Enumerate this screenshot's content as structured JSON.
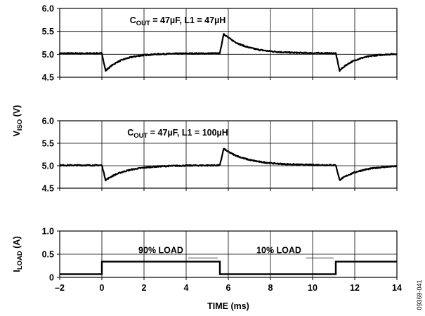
{
  "chart_data": {
    "type": "line",
    "x_label": "TIME (ms)",
    "x_range": [
      -2,
      14
    ],
    "x_ticks": [
      "–2",
      "0",
      "2",
      "4",
      "6",
      "8",
      "10",
      "12",
      "14"
    ],
    "figure_code": "09369-041",
    "shared_y_label": {
      "main": "V",
      "sub": "ISO",
      "unit": " (V)"
    },
    "panels": [
      {
        "id": "p1",
        "y_range": [
          4.5,
          6.0
        ],
        "y_ticks": [
          "6.0",
          "5.5",
          "5.0",
          "4.5"
        ],
        "annotation": {
          "c": "C",
          "c_sub": "OUT",
          "text": " = 47µF, L1 = 47µH"
        },
        "transients": [
          {
            "t": 0.0,
            "delta": -0.38,
            "tau": 0.8
          },
          {
            "t": 5.6,
            "delta": 0.43,
            "tau": 1.0
          },
          {
            "t": 11.1,
            "delta": -0.38,
            "tau": 0.8
          }
        ],
        "baseline": 5.02
      },
      {
        "id": "p2",
        "y_range": [
          4.5,
          6.0
        ],
        "y_ticks": [
          "6.0",
          "5.5",
          "5.0",
          "4.5"
        ],
        "annotation": {
          "c": "C",
          "c_sub": "OUT",
          "text": " = 47µF, L1 = 100µH"
        },
        "transients": [
          {
            "t": 0.0,
            "delta": -0.33,
            "tau": 1.0
          },
          {
            "t": 5.6,
            "delta": 0.37,
            "tau": 1.1
          },
          {
            "t": 11.1,
            "delta": -0.33,
            "tau": 1.0
          }
        ],
        "baseline": 5.01
      },
      {
        "id": "p3",
        "y_range": [
          0,
          1.0
        ],
        "y_ticks": [
          "1.0",
          "0.5",
          "0"
        ],
        "y_label": {
          "main": "I",
          "sub": "LOAD",
          "unit": " (A)"
        },
        "load_steps": [
          {
            "from": -2,
            "to": 0,
            "value": 0.07
          },
          {
            "from": 0,
            "to": 5.6,
            "value": 0.34
          },
          {
            "from": 5.6,
            "to": 11.1,
            "value": 0.07
          },
          {
            "from": 11.1,
            "to": 14,
            "value": 0.34
          }
        ],
        "labels": {
          "high": "90% LOAD",
          "low": "10% LOAD"
        }
      }
    ]
  }
}
